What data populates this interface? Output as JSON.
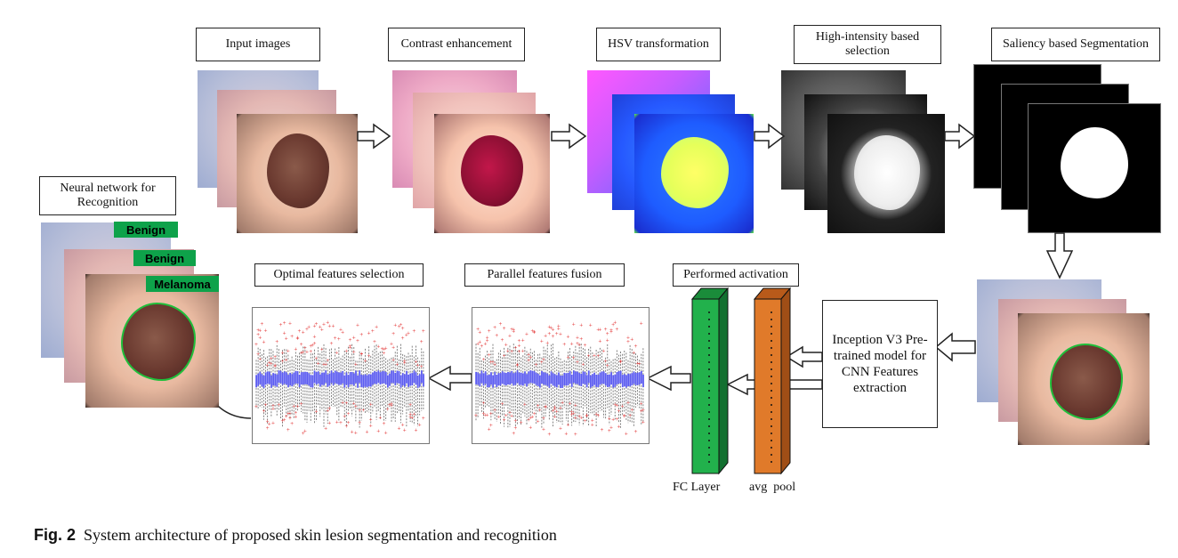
{
  "labels": {
    "input_images": "Input images",
    "contrast": "Contrast enhancement",
    "hsv": "HSV transformation",
    "high_intensity": "High-intensity based selection",
    "saliency": "Saliency based Segmentation",
    "neural": "Neural network for Recognition",
    "optimal": "Optimal features selection",
    "parallel": "Parallel features fusion",
    "activation": "Performed activation",
    "inception": "Inception V3 Pre-trained model for CNN Features extraction",
    "fc_layer": "FC Layer",
    "avg_pool": "avg  pool"
  },
  "tags": {
    "benign1": "Benign",
    "benign2": "Benign",
    "melanoma": "Melanoma"
  },
  "caption": {
    "fig": "Fig. 2",
    "text": "System architecture of proposed skin lesion segmentation and recognition"
  },
  "colors": {
    "fc_layer": "#22b14c",
    "avg_pool": "#e07a2a",
    "tag": "#0ea24a",
    "box_plot_center": "#5b5bf0",
    "outliers": "#e02020"
  }
}
